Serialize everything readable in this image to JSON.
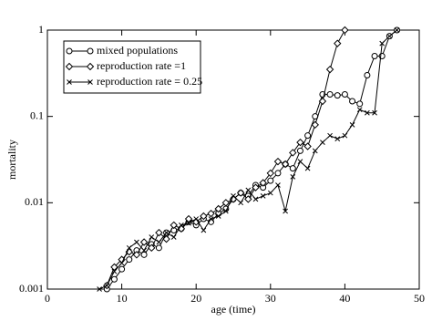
{
  "chart_data": {
    "type": "line",
    "xlabel": "age (time)",
    "ylabel": "mortality",
    "x": [
      7,
      8,
      9,
      10,
      11,
      12,
      13,
      14,
      15,
      16,
      17,
      18,
      19,
      20,
      21,
      22,
      23,
      24,
      25,
      26,
      27,
      28,
      29,
      30,
      31,
      32,
      33,
      34,
      35,
      36,
      37,
      38,
      39,
      40,
      41,
      42,
      43,
      44,
      45,
      46,
      47
    ],
    "series": [
      {
        "name": "mixed populations",
        "color": "#000000",
        "marker": "circle",
        "values": [
          null,
          0.001,
          0.0013,
          0.0017,
          0.0022,
          0.0028,
          0.0025,
          0.0033,
          0.003,
          0.0045,
          0.0048,
          0.005,
          0.006,
          0.0055,
          0.0065,
          0.006,
          0.0075,
          0.0085,
          0.011,
          0.013,
          0.012,
          0.016,
          0.015,
          0.018,
          0.022,
          0.028,
          0.025,
          0.04,
          0.06,
          0.1,
          0.18,
          0.18,
          0.175,
          0.18,
          0.15,
          0.14,
          0.3,
          0.5,
          0.5,
          0.85,
          1
        ]
      },
      {
        "name": "reproduction rate =1",
        "color": "#000000",
        "marker": "diamond",
        "values": [
          null,
          0.0011,
          0.0018,
          0.0022,
          0.0027,
          0.0025,
          0.0035,
          0.003,
          0.0045,
          0.0038,
          0.0055,
          0.005,
          0.0065,
          0.006,
          0.007,
          0.0075,
          0.0085,
          0.01,
          0.011,
          0.013,
          0.011,
          0.015,
          0.017,
          0.022,
          0.03,
          0.028,
          0.038,
          0.05,
          0.045,
          0.08,
          0.15,
          0.35,
          0.7,
          1,
          null,
          null,
          null,
          null,
          null,
          null,
          null
        ]
      },
      {
        "name": "reproduction rate = 0.25",
        "color": "#000000",
        "marker": "x",
        "values": [
          0.001,
          0.0011,
          0.0016,
          0.002,
          0.003,
          0.0035,
          0.0028,
          0.004,
          0.0035,
          0.0045,
          0.004,
          0.0055,
          0.0058,
          0.0065,
          0.0048,
          0.0065,
          0.007,
          0.008,
          0.012,
          0.01,
          0.014,
          0.011,
          0.012,
          0.013,
          0.016,
          0.008,
          0.02,
          0.03,
          0.025,
          0.04,
          0.05,
          0.06,
          0.055,
          0.06,
          0.08,
          0.12,
          0.11,
          0.11,
          0.7,
          0.85,
          1
        ]
      }
    ],
    "xlim": [
      0,
      50
    ],
    "xticks": [
      0,
      10,
      20,
      30,
      40,
      50
    ],
    "ylim": [
      0.001,
      1
    ],
    "yticks": [
      0.001,
      0.01,
      0.1,
      1
    ],
    "ylog": true,
    "legend": "upper left"
  }
}
